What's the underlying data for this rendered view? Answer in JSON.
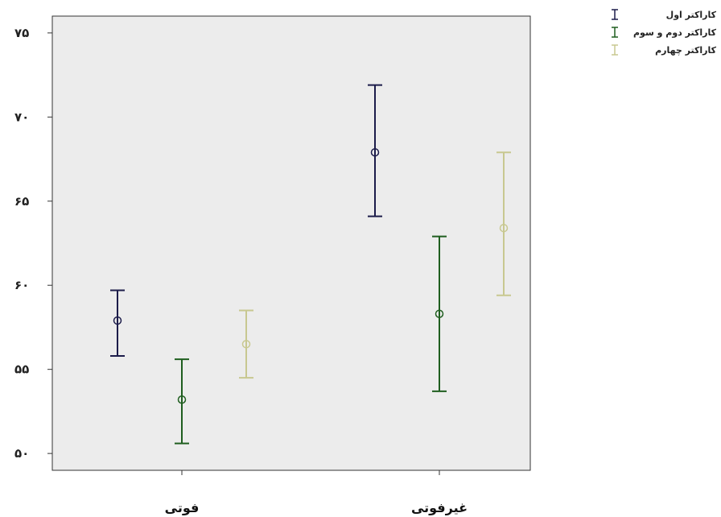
{
  "chart_data": {
    "type": "errorbar",
    "categories": [
      "فوتی",
      "غیرفوتی"
    ],
    "ylim": [
      49,
      76
    ],
    "yticks": [
      {
        "value": 50,
        "label": "۵۰"
      },
      {
        "value": 55,
        "label": "۵۵"
      },
      {
        "value": 60,
        "label": "۶۰"
      },
      {
        "value": 65,
        "label": "۶۵"
      },
      {
        "value": 70,
        "label": "۷۰"
      },
      {
        "value": 75,
        "label": "۷۵"
      }
    ],
    "grid": false,
    "legend_position": "top-right",
    "series": [
      {
        "name": "کاراکتر اول",
        "color": "#1c1c4a",
        "points": [
          {
            "mean": 57.9,
            "low": 55.8,
            "high": 59.7
          },
          {
            "mean": 67.9,
            "low": 64.1,
            "high": 71.9
          }
        ]
      },
      {
        "name": "کاراکتر دوم و سوم",
        "color": "#1f5e1f",
        "points": [
          {
            "mean": 53.2,
            "low": 50.6,
            "high": 55.6
          },
          {
            "mean": 58.3,
            "low": 53.7,
            "high": 62.9
          }
        ]
      },
      {
        "name": "کاراکتر چهارم",
        "color": "#c8c890",
        "points": [
          {
            "mean": 56.5,
            "low": 54.5,
            "high": 58.5
          },
          {
            "mean": 63.4,
            "low": 59.4,
            "high": 67.9
          }
        ]
      }
    ]
  }
}
